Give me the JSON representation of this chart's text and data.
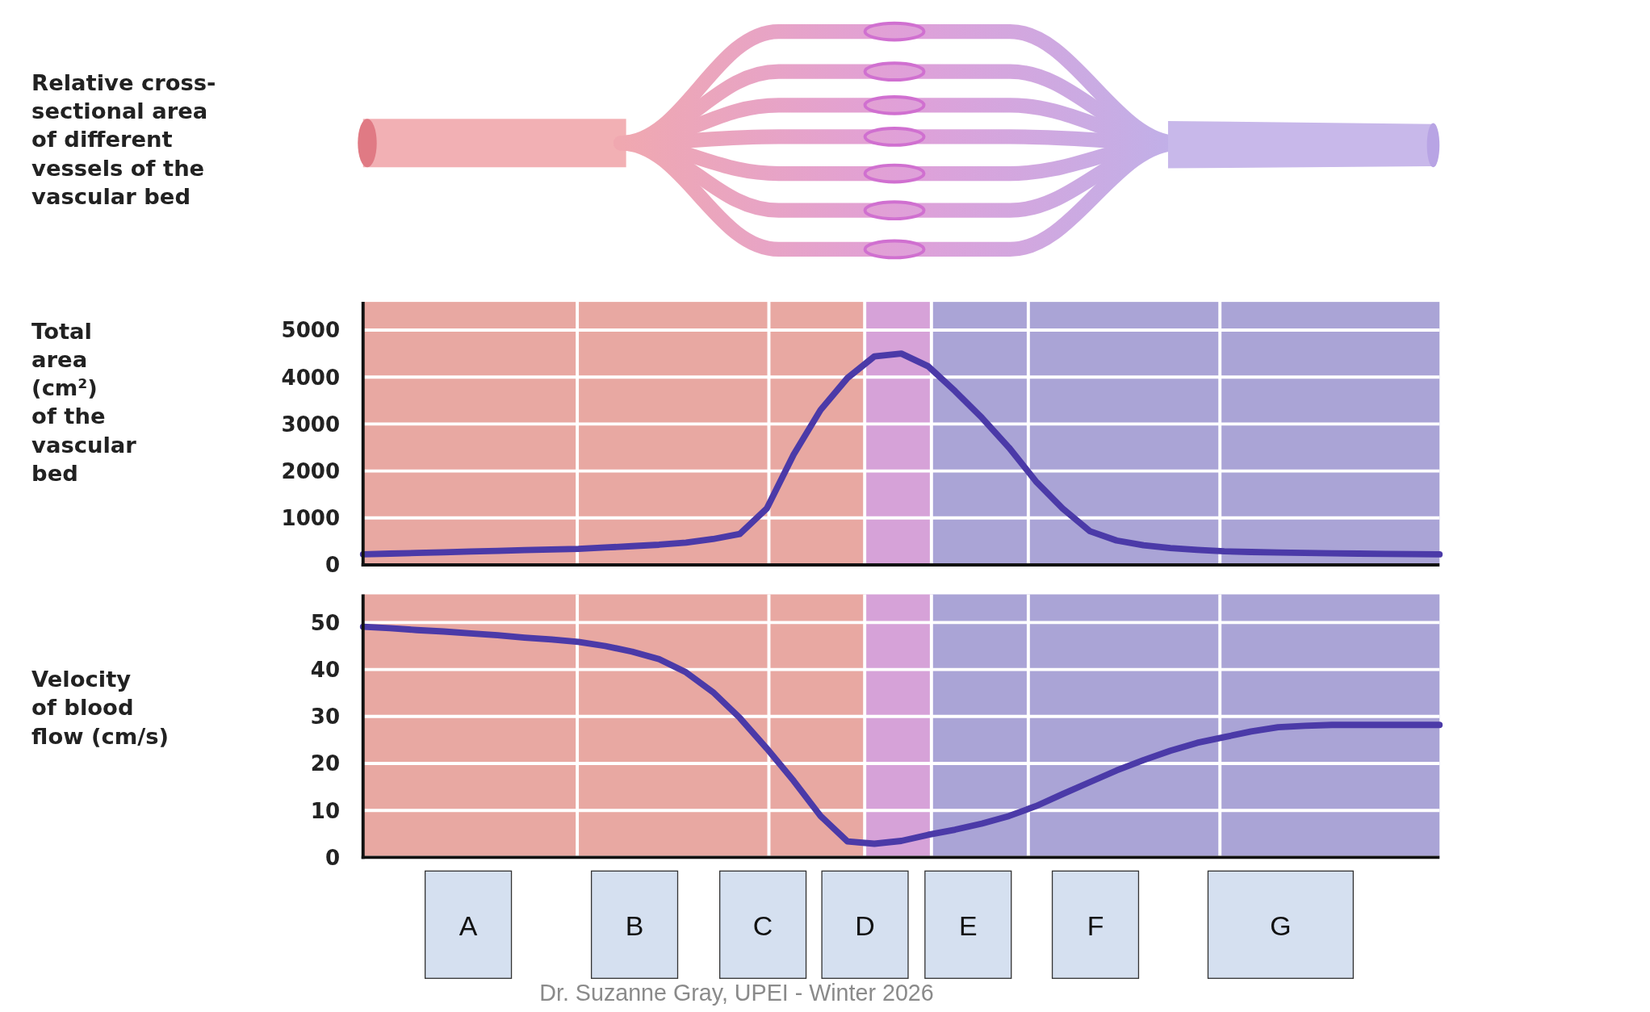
{
  "chart_data": [
    {
      "type": "line",
      "ylabel": "Total area (cm²) of the vascular bed",
      "categories": [
        null,
        null,
        null,
        null,
        null,
        null,
        null,
        null,
        null,
        null,
        null,
        null,
        null,
        null,
        null,
        null,
        null,
        null,
        null,
        null,
        null,
        null,
        null,
        null,
        null,
        null,
        null,
        null,
        null,
        null,
        null,
        null,
        null,
        null,
        null,
        null,
        null,
        null,
        null,
        null,
        null
      ],
      "ylim": [
        0,
        5600
      ],
      "yticks": [
        0,
        1000,
        2000,
        3000,
        4000,
        5000
      ],
      "grid": true,
      "tick_labels": "y",
      "line_style": "solid",
      "annotations": [
        "Relative cross-sectional area of different vessels of the vascular bed"
      ],
      "series": [
        {
          "color": "#4b3aa8",
          "values": [
            225,
            240,
            255,
            270,
            285,
            300,
            315,
            328,
            340,
            370,
            400,
            430,
            475,
            550,
            660,
            1200,
            2350,
            3300,
            3980,
            4440,
            4500,
            4230,
            3700,
            3130,
            2500,
            1780,
            1200,
            720,
            520,
            420,
            360,
            320,
            290,
            275,
            265,
            255,
            248,
            240,
            235,
            230,
            225
          ]
        }
      ]
    },
    {
      "type": "line",
      "ylabel": "Velocity of blood flow (cm/s)",
      "categories": [
        null,
        null,
        null,
        null,
        null,
        null,
        null,
        null,
        null,
        null,
        null,
        null,
        null,
        null,
        null,
        null,
        null,
        null,
        null,
        null,
        null,
        null,
        null,
        null,
        null,
        null,
        null,
        null,
        null,
        null,
        null,
        null,
        null,
        null,
        null,
        null,
        null,
        null,
        null,
        null,
        null
      ],
      "ylim": [
        0,
        56
      ],
      "yticks": [
        0,
        10,
        20,
        30,
        40,
        50
      ],
      "grid": true,
      "tick_labels": "y",
      "line_style": "solid",
      "annotations": [
        "A",
        "B",
        "C",
        "D",
        "E",
        "F",
        "G",
        "Dr. Suzanne Gray, UPEI - Winter 2026"
      ],
      "series": [
        {
          "color": "#4b3aa8",
          "values": [
            49.1,
            48.8,
            48.4,
            48.1,
            47.7,
            47.3,
            46.8,
            46.4,
            45.9,
            45.0,
            43.8,
            42.2,
            39.4,
            35.2,
            29.7,
            23.2,
            16.3,
            8.8,
            3.4,
            2.9,
            3.5,
            4.8,
            5.9,
            7.2,
            8.8,
            10.9,
            13.5,
            16.0,
            18.5,
            20.7,
            22.7,
            24.4,
            25.6,
            26.8,
            27.7,
            28.0,
            28.2,
            28.2,
            28.2,
            28.2,
            28.2
          ]
        }
      ]
    }
  ]
}
